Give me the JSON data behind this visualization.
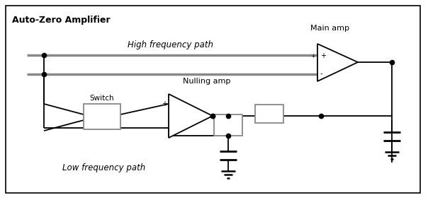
{
  "title": "Auto-Zero Amplifier",
  "label_high_freq": "High frequency path",
  "label_low_freq": "Low frequency path",
  "label_main_amp": "Main amp",
  "label_nulling_amp": "Nulling amp",
  "label_switch": "Switch",
  "bg_color": "#ffffff",
  "figsize": [
    6.04,
    2.83
  ],
  "dpi": 100
}
